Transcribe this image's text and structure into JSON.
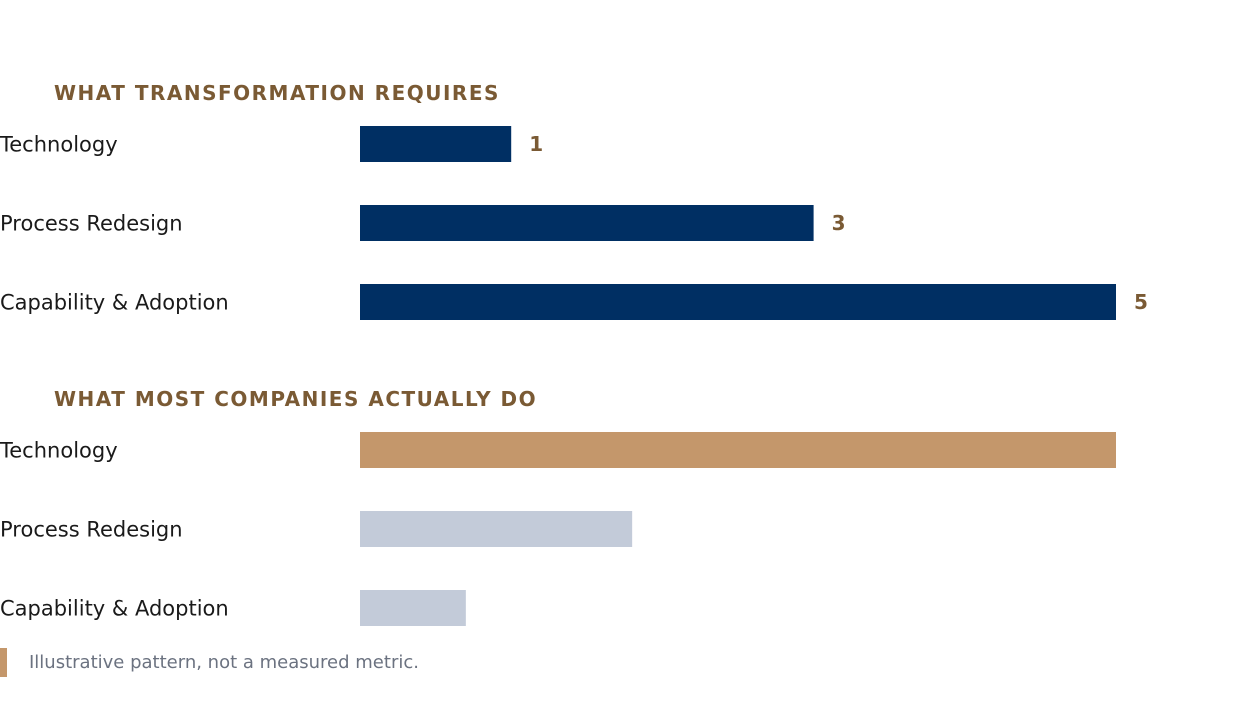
{
  "colors": {
    "title": "#7a5a34",
    "label": "#1a1a1a",
    "value": "#7a5a34",
    "navy": "#002f63",
    "tan": "#c4976b",
    "muted": "#c3cbd9",
    "footnote_accent": "#c4976b"
  },
  "chart_data": [
    {
      "type": "bar",
      "orientation": "horizontal",
      "title": "WHAT TRANSFORMATION REQUIRES",
      "categories": [
        "Technology",
        "Process Redesign",
        "Capability & Adoption"
      ],
      "values": [
        1,
        3,
        5
      ],
      "value_labels": [
        "1",
        "3",
        "5"
      ],
      "bar_colors": [
        "#002f63",
        "#002f63",
        "#002f63"
      ],
      "xlim": [
        0,
        5.3
      ]
    },
    {
      "type": "bar",
      "orientation": "horizontal",
      "title": "WHAT MOST COMPANIES ACTUALLY DO",
      "categories": [
        "Technology",
        "Process Redesign",
        "Capability & Adoption"
      ],
      "values": [
        5,
        1.8,
        0.7
      ],
      "value_labels": [],
      "bar_colors": [
        "#c4976b",
        "#c3cbd9",
        "#c3cbd9"
      ],
      "xlim": [
        0,
        5.3
      ]
    }
  ],
  "footnote": {
    "text": "Illustrative pattern, not a measured metric."
  }
}
